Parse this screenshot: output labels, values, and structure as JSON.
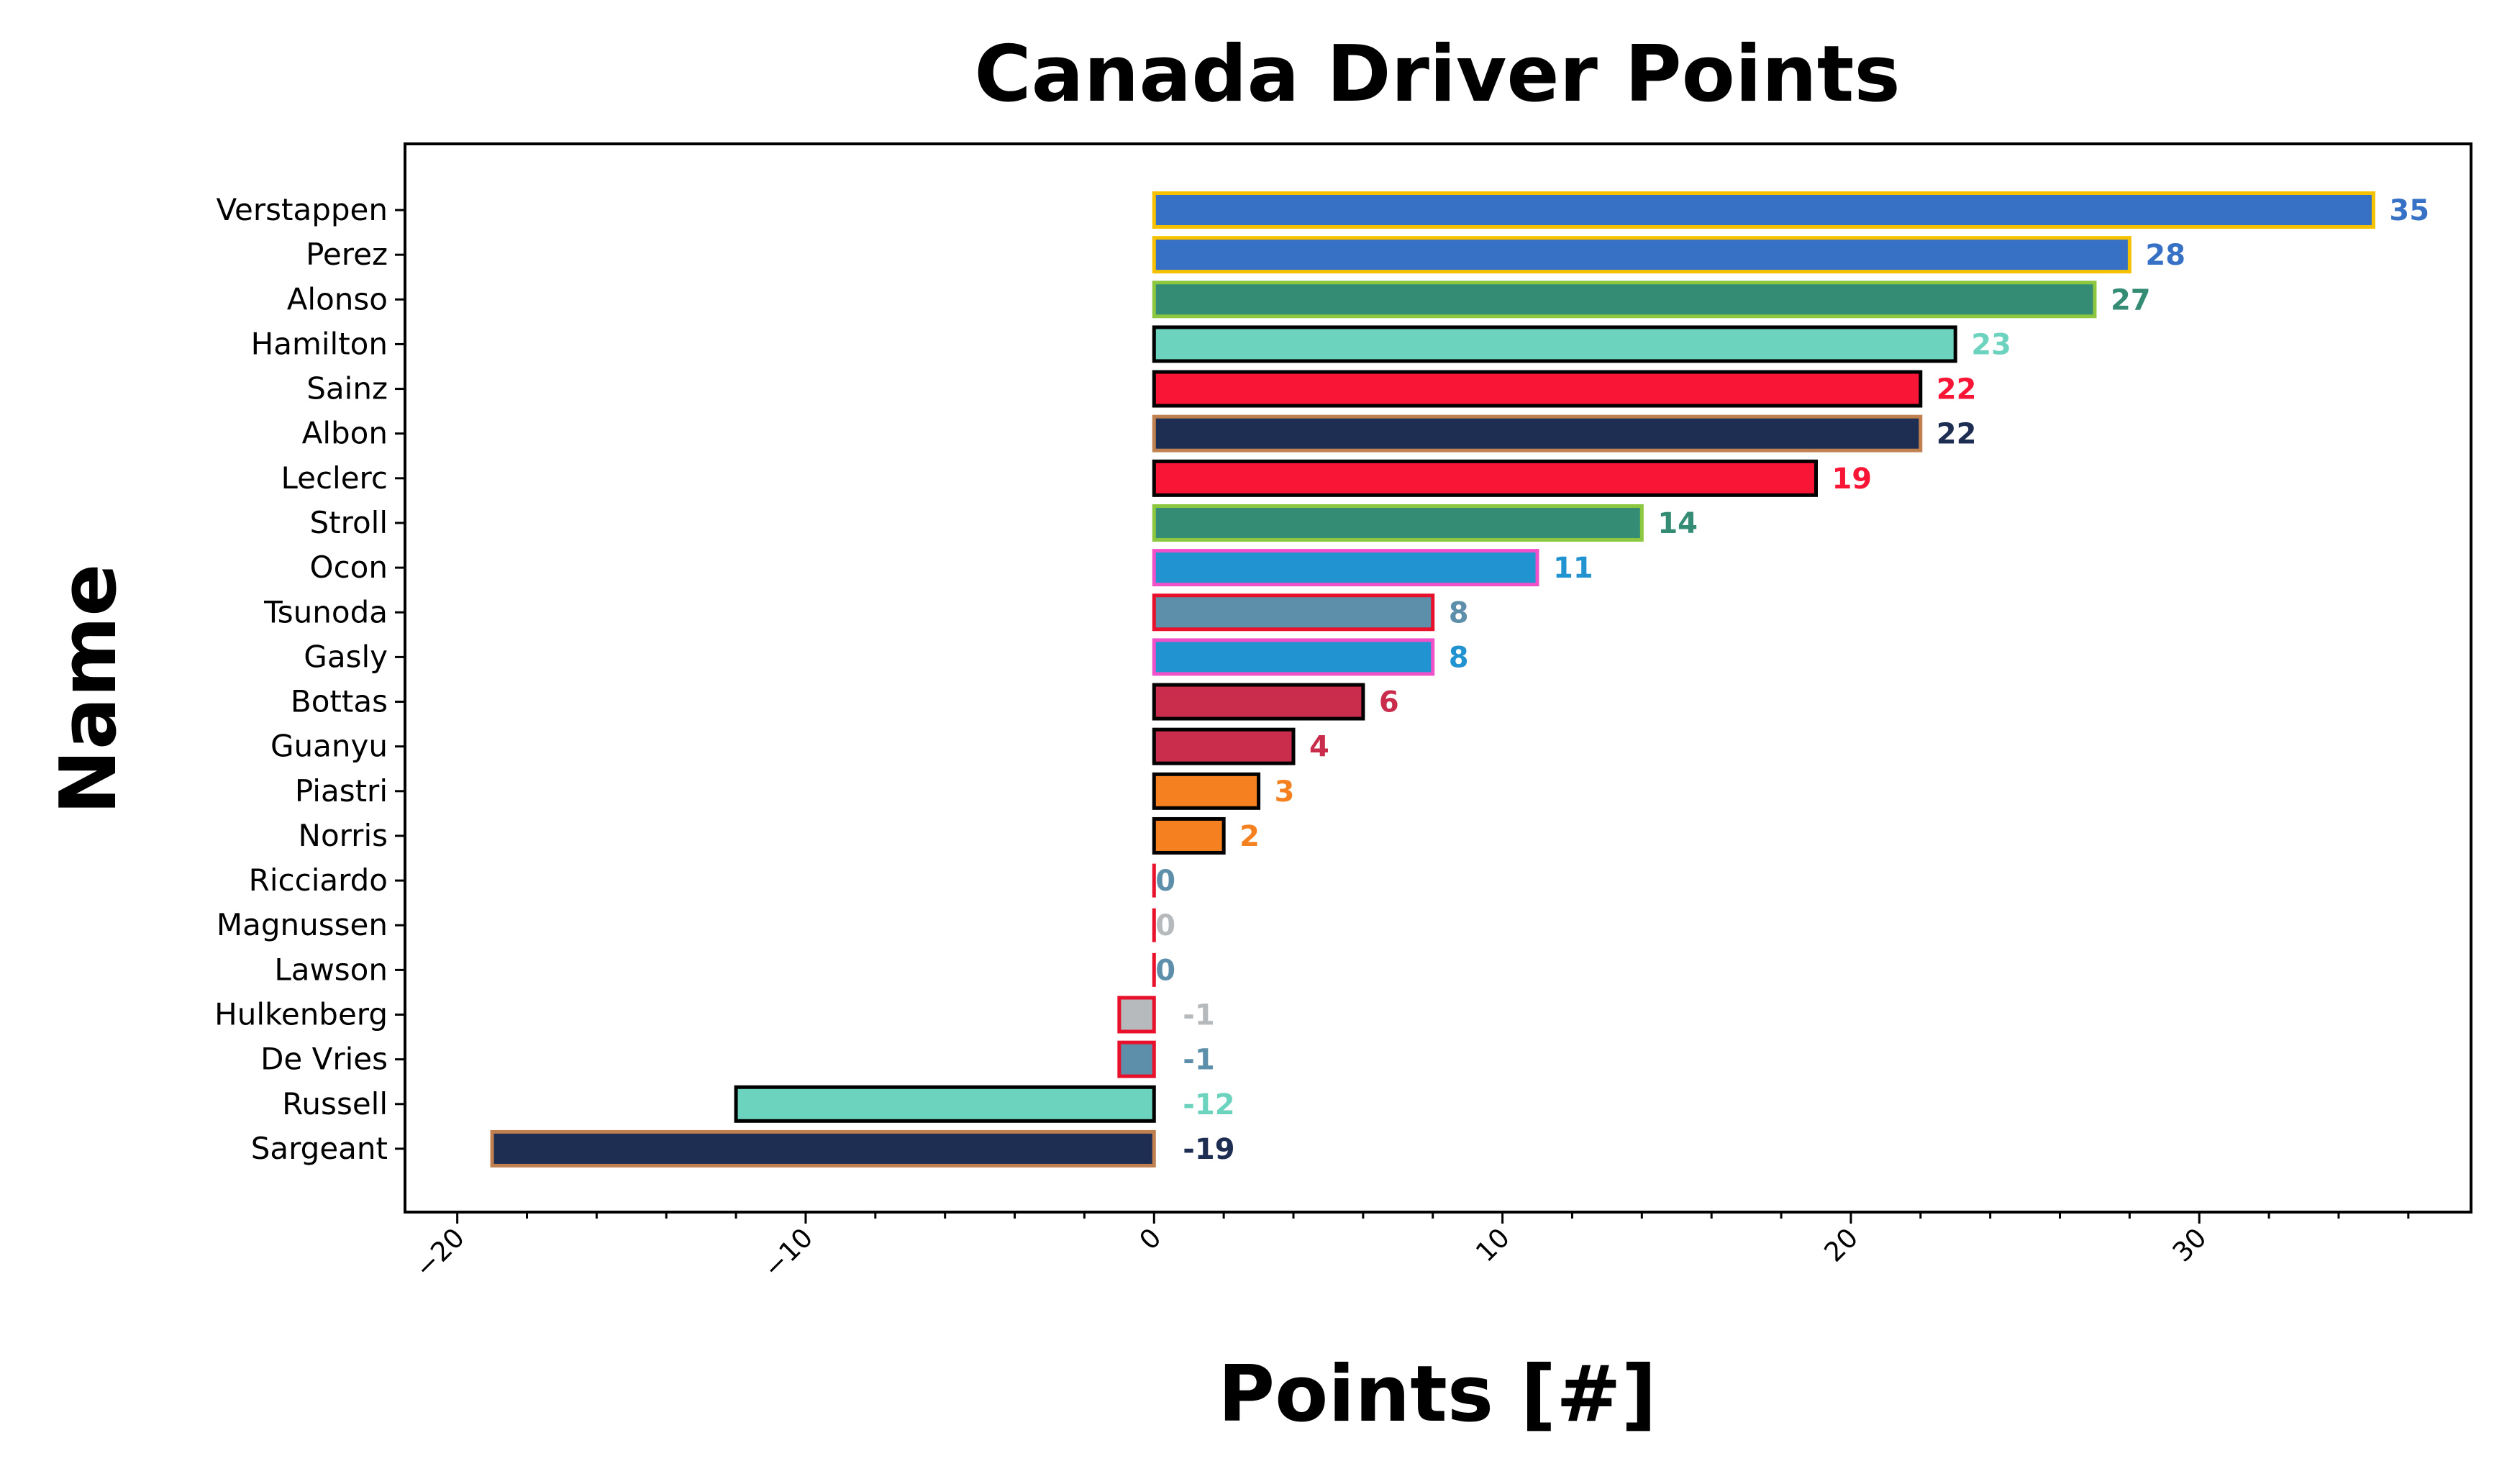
{
  "chart_data": {
    "type": "bar",
    "orientation": "horizontal",
    "title": "Canada Driver Points",
    "xlabel": "Points [#]",
    "ylabel": "Name",
    "xlim": [
      -21.5,
      37.8
    ],
    "xticks": [
      -20,
      -10,
      0,
      10,
      20,
      30
    ],
    "xtick_labels": [
      "−20",
      "−10",
      "0",
      "10",
      "20",
      "30"
    ],
    "xminor_step": 2,
    "grid": false,
    "legend": "none",
    "bars": [
      {
        "name": "Verstappen",
        "value": 35,
        "fill": "#3671C6",
        "edge": "#F6C200",
        "label_color": "#3671C6"
      },
      {
        "name": "Perez",
        "value": 28,
        "fill": "#3671C6",
        "edge": "#F6C200",
        "label_color": "#3671C6"
      },
      {
        "name": "Alonso",
        "value": 27,
        "fill": "#358C75",
        "edge": "#8DC63F",
        "label_color": "#358C75"
      },
      {
        "name": "Hamilton",
        "value": 23,
        "fill": "#6CD3BF",
        "edge": "#000000",
        "label_color": "#6CD3BF"
      },
      {
        "name": "Sainz",
        "value": 22,
        "fill": "#F91536",
        "edge": "#000000",
        "label_color": "#F91536"
      },
      {
        "name": "Albon",
        "value": 22,
        "fill": "#1E2D52",
        "edge": "#C08050",
        "label_color": "#1E2D52"
      },
      {
        "name": "Leclerc",
        "value": 19,
        "fill": "#F91536",
        "edge": "#000000",
        "label_color": "#F91536"
      },
      {
        "name": "Stroll",
        "value": 14,
        "fill": "#358C75",
        "edge": "#8DC63F",
        "label_color": "#358C75"
      },
      {
        "name": "Ocon",
        "value": 11,
        "fill": "#2293D1",
        "edge": "#F050C8",
        "label_color": "#2293D1"
      },
      {
        "name": "Tsunoda",
        "value": 8,
        "fill": "#5E8FAA",
        "edge": "#E8102A",
        "label_color": "#5E8FAA"
      },
      {
        "name": "Gasly",
        "value": 8,
        "fill": "#2293D1",
        "edge": "#F050C8",
        "label_color": "#2293D1"
      },
      {
        "name": "Bottas",
        "value": 6,
        "fill": "#C92D4B",
        "edge": "#000000",
        "label_color": "#C92D4B"
      },
      {
        "name": "Guanyu",
        "value": 4,
        "fill": "#C92D4B",
        "edge": "#000000",
        "label_color": "#C92D4B"
      },
      {
        "name": "Piastri",
        "value": 3,
        "fill": "#F58020",
        "edge": "#000000",
        "label_color": "#F58020"
      },
      {
        "name": "Norris",
        "value": 2,
        "fill": "#F58020",
        "edge": "#000000",
        "label_color": "#F58020"
      },
      {
        "name": "Ricciardo",
        "value": 0,
        "fill": "#5E8FAA",
        "edge": "#E8102A",
        "label_color": "#5E8FAA"
      },
      {
        "name": "Magnussen",
        "value": 0,
        "fill": "#B6BABD",
        "edge": "#E8102A",
        "label_color": "#B6BABD"
      },
      {
        "name": "Lawson",
        "value": 0,
        "fill": "#5E8FAA",
        "edge": "#E8102A",
        "label_color": "#5E8FAA"
      },
      {
        "name": "Hulkenberg",
        "value": -1,
        "fill": "#B6BABD",
        "edge": "#E8102A",
        "label_color": "#B6BABD"
      },
      {
        "name": "De Vries",
        "value": -1,
        "fill": "#5E8FAA",
        "edge": "#E8102A",
        "label_color": "#5E8FAA"
      },
      {
        "name": "Russell",
        "value": -12,
        "fill": "#6CD3BF",
        "edge": "#000000",
        "label_color": "#6CD3BF"
      },
      {
        "name": "Sargeant",
        "value": -19,
        "fill": "#1E2D52",
        "edge": "#C08050",
        "label_color": "#1E2D52"
      }
    ]
  }
}
